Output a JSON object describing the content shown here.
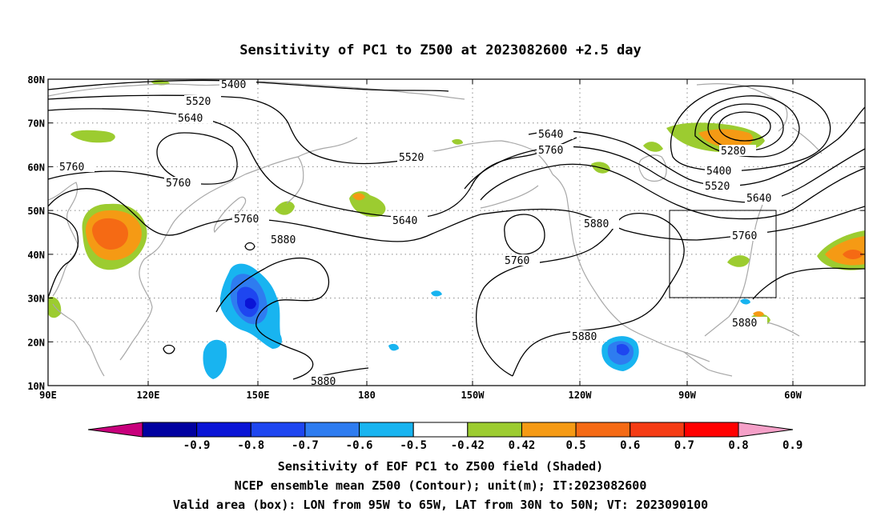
{
  "title": "Sensitivity of PC1 to Z500 at 2023082600 +2.5 day",
  "lat_ticks": [
    "80N",
    "70N",
    "60N",
    "50N",
    "40N",
    "30N",
    "20N",
    "10N"
  ],
  "lon_ticks": [
    "90E",
    "120E",
    "150E",
    "180",
    "150W",
    "120W",
    "90W",
    "60W"
  ],
  "contour_labels": [
    "5400",
    "5520",
    "5640",
    "5760",
    "5760",
    "5520",
    "5640",
    "5760",
    "5640",
    "5760",
    "5880",
    "5280",
    "5400",
    "5520",
    "5640",
    "5760",
    "5760",
    "5880",
    "5880",
    "5880",
    "5880"
  ],
  "colorbar": {
    "labels": [
      "-0.9",
      "-0.8",
      "-0.7",
      "-0.6",
      "-0.5",
      "-0.42",
      "0.42",
      "0.5",
      "0.6",
      "0.7",
      "0.8",
      "0.9"
    ],
    "colors": [
      "#c8007c",
      "#0000a0",
      "#0a14d6",
      "#1e46f0",
      "#2e7cf0",
      "#18b4f0",
      "#ffffff",
      "#9ccc30",
      "#f59a14",
      "#f56a14",
      "#f53c14",
      "#ff0000",
      "#f5a0c8"
    ]
  },
  "footer": [
    "Sensitivity of EOF PC1 to Z500 field (Shaded)",
    "NCEP ensemble mean Z500 (Contour); unit(m); IT:2023082600",
    "Valid area (box): LON from 95W to 65W, LAT from 30N to 50N; VT: 2023090100"
  ],
  "map": {
    "lon_range": [
      "90E",
      "50W"
    ],
    "lat_range": [
      "10N",
      "80N"
    ],
    "valid_box": {
      "lon": [
        "95W",
        "65W"
      ],
      "lat": [
        "30N",
        "50N"
      ]
    }
  }
}
